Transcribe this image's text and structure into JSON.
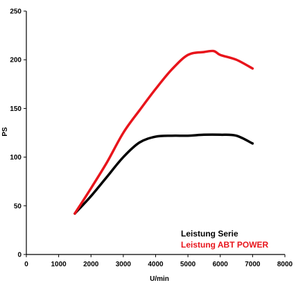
{
  "chart_data": {
    "type": "line",
    "xlabel": "U/min",
    "ylabel": "PS",
    "xlim": [
      0,
      8000
    ],
    "ylim": [
      0,
      250
    ],
    "xticks": [
      "0",
      "1000",
      "2000",
      "3000",
      "4000",
      "5000",
      "6000",
      "7000",
      "8000"
    ],
    "yticks": [
      "0",
      "50",
      "100",
      "150",
      "200",
      "250"
    ],
    "grid": false,
    "legend_position": "bottom-right",
    "series": [
      {
        "name": "Leistung Serie",
        "color": "#000000",
        "x": [
          1500,
          2000,
          2500,
          3000,
          3500,
          4000,
          4500,
          5000,
          5500,
          6000,
          6500,
          7000
        ],
        "y": [
          42,
          60,
          80,
          100,
          115,
          121,
          122,
          122,
          123,
          123,
          122,
          114
        ]
      },
      {
        "name": "Leistung ABT POWER",
        "color": "#e8141b",
        "x": [
          1500,
          2000,
          2500,
          3000,
          3500,
          4000,
          4500,
          5000,
          5500,
          5800,
          6000,
          6500,
          7000
        ],
        "y": [
          42,
          68,
          95,
          125,
          148,
          170,
          190,
          205,
          208,
          209,
          205,
          200,
          191
        ]
      }
    ]
  }
}
